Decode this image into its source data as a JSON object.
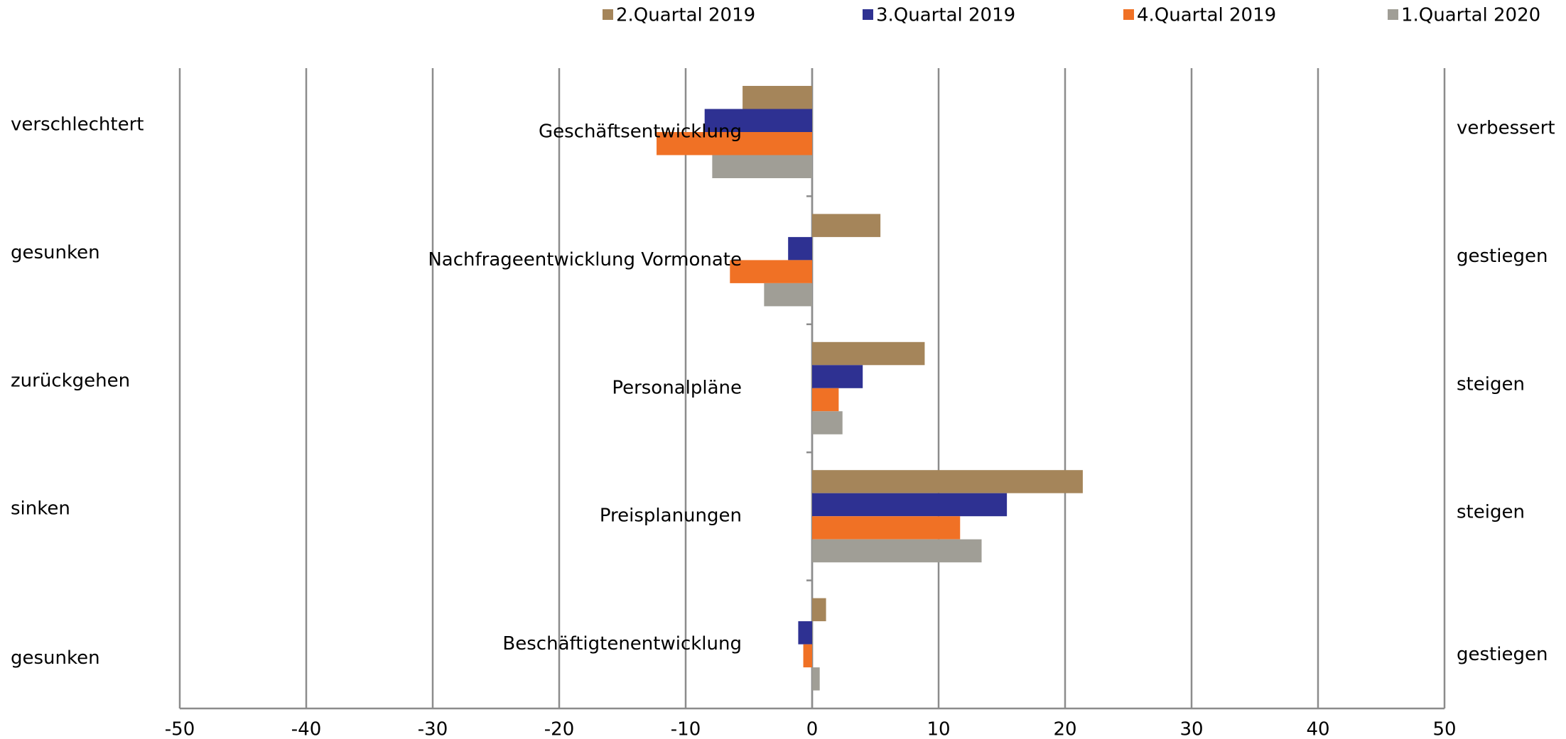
{
  "chart_data": {
    "type": "hbar",
    "categories": [
      "Geschäftsentwicklung",
      "Nachfrageentwicklung Vormonate",
      "Personalpläne",
      "Preisplanungen",
      "Beschäftigtenentwicklung"
    ],
    "annotations": [
      {
        "left": "verschlechtert",
        "right": "verbessert"
      },
      {
        "left": "gesunken",
        "right": "gestiegen"
      },
      {
        "left": "zurückgehen",
        "right": "steigen"
      },
      {
        "left": "sinken",
        "right": "steigen"
      },
      {
        "left": "gesunken",
        "right": "gestiegen"
      }
    ],
    "series": [
      {
        "name": "2.Quartal 2019",
        "color": "#a5855a",
        "values": [
          -5.5,
          5.4,
          8.9,
          21.4,
          1.1
        ]
      },
      {
        "name": "3.Quartal 2019",
        "color": "#2e3192",
        "values": [
          -8.5,
          -1.9,
          4.0,
          15.4,
          -1.1
        ]
      },
      {
        "name": "4.Quartal 2019",
        "color": "#f07125",
        "values": [
          -12.3,
          -6.5,
          2.1,
          11.7,
          -0.7
        ]
      },
      {
        "name": "1.Quartal 2020",
        "color": "#a09e96",
        "values": [
          -7.9,
          -3.8,
          2.4,
          13.4,
          0.6
        ]
      }
    ],
    "xlim": [
      -50,
      50
    ],
    "xticks": [
      -50,
      -40,
      -30,
      -20,
      -10,
      0,
      10,
      20,
      30,
      40,
      50
    ],
    "grid": true,
    "legend": "top"
  }
}
